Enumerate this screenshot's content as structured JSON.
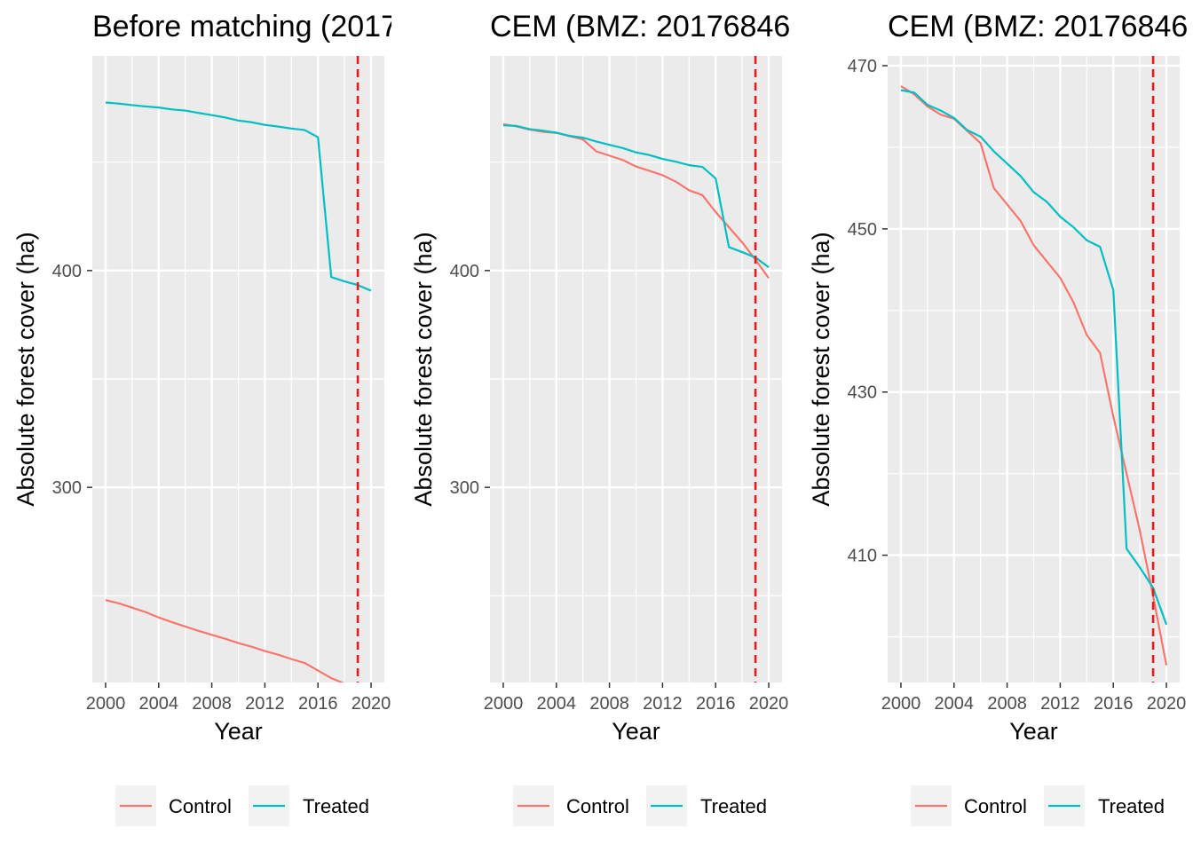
{
  "colors": {
    "control": "#F8766D",
    "treated": "#00BFC4",
    "panel_background": "#EBEBEB",
    "grid": "#FFFFFF",
    "tick": "#333333",
    "tick_label": "#4d4d4d",
    "reference_line": "#E41A1C"
  },
  "chart_data": [
    {
      "type": "line",
      "title": "Before matching (2017",
      "xlabel": "Year",
      "ylabel": "Absolute forest cover (ha)",
      "xlim": [
        1999,
        2021
      ],
      "ylim": [
        210,
        499
      ],
      "x_ticks": [
        2000,
        2004,
        2008,
        2012,
        2016,
        2020
      ],
      "y_ticks": [
        300,
        400
      ],
      "y_minor_ticks": [
        250,
        350,
        450
      ],
      "reference_x": 2019,
      "grid": true,
      "legend_position": "bottom",
      "x": [
        2000,
        2001,
        2002,
        2003,
        2004,
        2005,
        2006,
        2007,
        2008,
        2009,
        2010,
        2011,
        2012,
        2013,
        2014,
        2015,
        2016,
        2017,
        2018,
        2019,
        2020
      ],
      "series": [
        {
          "name": "Control",
          "color_key": "control",
          "values": [
            248,
            246.5,
            244.5,
            242.5,
            240,
            237.8,
            235.8,
            233.8,
            232,
            230.2,
            228.2,
            226.5,
            224.5,
            222.8,
            220.8,
            219,
            215.5,
            212,
            209.5,
            207,
            204.5
          ]
        },
        {
          "name": "Treated",
          "color_key": "treated",
          "values": [
            477.5,
            477,
            476.3,
            475.7,
            475.2,
            474.3,
            473.8,
            472.7,
            471.7,
            470.6,
            469.2,
            468.4,
            467.2,
            466.4,
            465.5,
            464.8,
            461.5,
            397,
            395,
            393.3,
            390.7
          ]
        }
      ]
    },
    {
      "type": "line",
      "title": "CEM (BMZ: 20176846",
      "xlabel": "Year",
      "ylabel": "Absolute forest cover (ha)",
      "xlim": [
        1999,
        2021
      ],
      "ylim": [
        210,
        499
      ],
      "x_ticks": [
        2000,
        2004,
        2008,
        2012,
        2016,
        2020
      ],
      "y_ticks": [
        300,
        400
      ],
      "y_minor_ticks": [
        250,
        350,
        450
      ],
      "reference_x": 2019,
      "grid": true,
      "legend_position": "bottom",
      "x": [
        2000,
        2001,
        2002,
        2003,
        2004,
        2005,
        2006,
        2007,
        2008,
        2009,
        2010,
        2011,
        2012,
        2013,
        2014,
        2015,
        2016,
        2017,
        2018,
        2019,
        2020
      ],
      "series": [
        {
          "name": "Control",
          "color_key": "control",
          "values": [
            467.5,
            466.5,
            465,
            464,
            463.5,
            462,
            460.5,
            455,
            453,
            451,
            448,
            446,
            444,
            441,
            437,
            434.8,
            427,
            420,
            413,
            405,
            396.5
          ]
        },
        {
          "name": "Treated",
          "color_key": "treated",
          "values": [
            467,
            466.7,
            465.2,
            464.5,
            463.6,
            462.1,
            461.3,
            459.5,
            458,
            456.5,
            454.5,
            453.3,
            451.5,
            450.2,
            448.6,
            447.8,
            442.5,
            410.8,
            408.5,
            406,
            401.5
          ]
        }
      ]
    },
    {
      "type": "line",
      "title": "CEM (BMZ: 20176846",
      "xlabel": "Year",
      "ylabel": "Absolute forest cover (ha)",
      "xlim": [
        1999,
        2021
      ],
      "ylim": [
        394.4,
        471.2
      ],
      "x_ticks": [
        2000,
        2004,
        2008,
        2012,
        2016,
        2020
      ],
      "y_ticks": [
        410,
        430,
        450,
        470
      ],
      "y_minor_ticks": [
        400,
        420,
        440,
        460
      ],
      "reference_x": 2019,
      "grid": true,
      "legend_position": "bottom",
      "x": [
        2000,
        2001,
        2002,
        2003,
        2004,
        2005,
        2006,
        2007,
        2008,
        2009,
        2010,
        2011,
        2012,
        2013,
        2014,
        2015,
        2016,
        2017,
        2018,
        2019,
        2020
      ],
      "series": [
        {
          "name": "Control",
          "color_key": "control",
          "values": [
            467.5,
            466.5,
            465,
            464,
            463.5,
            462,
            460.5,
            455,
            453,
            451,
            448,
            446,
            444,
            441,
            437,
            434.8,
            427,
            420,
            413,
            405,
            396.5
          ]
        },
        {
          "name": "Treated",
          "color_key": "treated",
          "values": [
            467,
            466.7,
            465.2,
            464.5,
            463.6,
            462.1,
            461.3,
            459.5,
            458,
            456.5,
            454.5,
            453.3,
            451.5,
            450.2,
            448.6,
            447.8,
            442.5,
            410.8,
            408.5,
            406,
            401.5
          ]
        }
      ]
    }
  ]
}
